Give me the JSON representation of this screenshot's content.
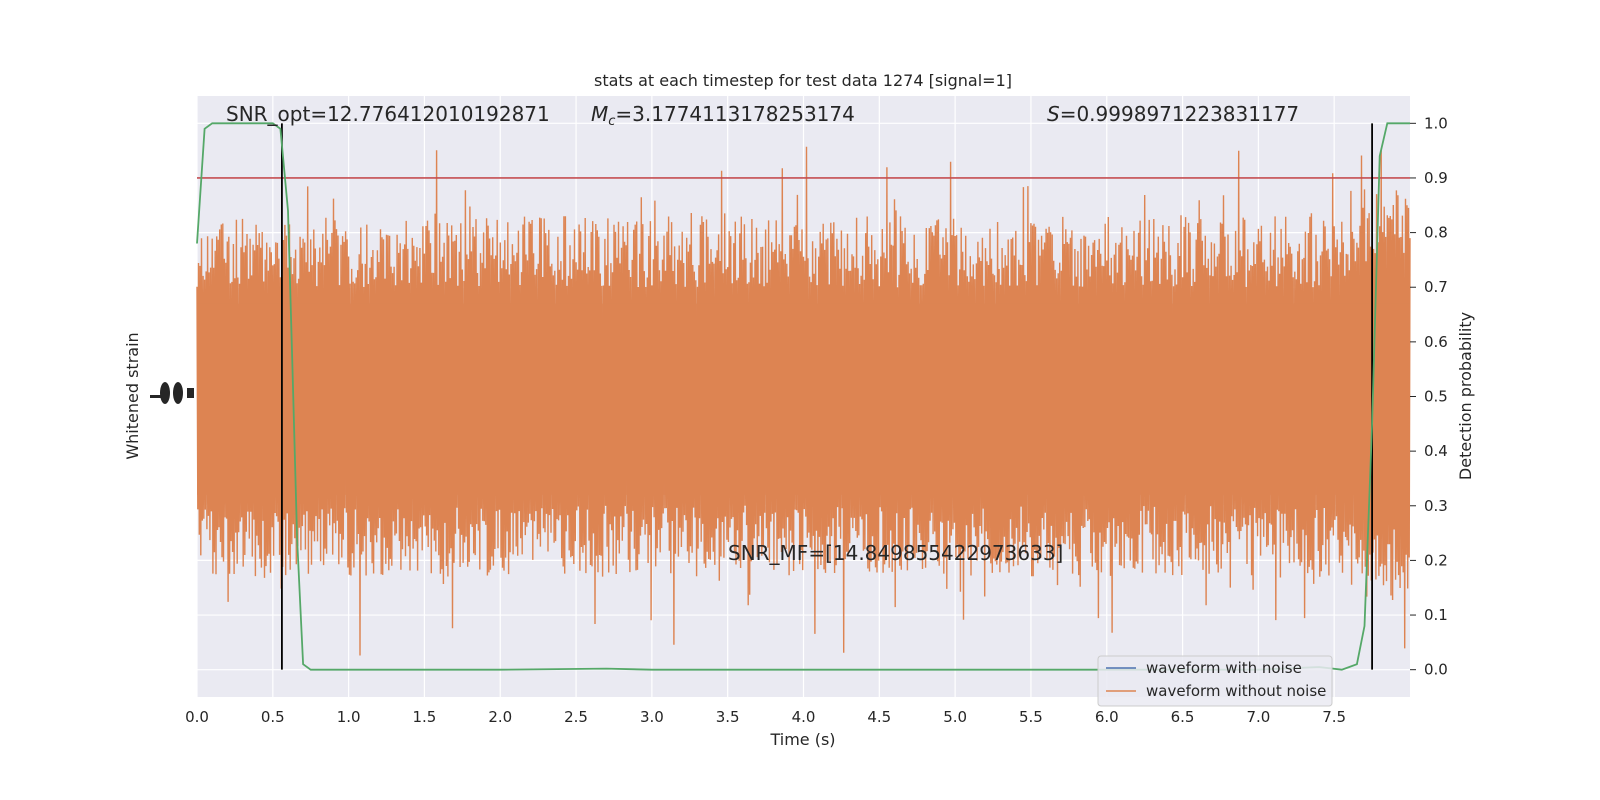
{
  "chart_data": {
    "type": "line",
    "title": "stats at each timestep for test data 1274 [signal=1]",
    "xlabel": "Time (s)",
    "ylabel_left": "Whitened strain",
    "ylabel_right": "Detection probability",
    "xlim": [
      0,
      8
    ],
    "ylim_right": [
      -0.05,
      1.05
    ],
    "x_ticks": [
      "0.0",
      "0.5",
      "1.0",
      "1.5",
      "2.0",
      "2.5",
      "3.0",
      "3.5",
      "4.0",
      "4.5",
      "5.0",
      "5.5",
      "6.0",
      "6.5",
      "7.0",
      "7.5"
    ],
    "x_tick_values": [
      0,
      0.5,
      1,
      1.5,
      2,
      2.5,
      3,
      3.5,
      4,
      4.5,
      5,
      5.5,
      6,
      6.5,
      7,
      7.5
    ],
    "y_right_ticks": [
      "0.0",
      "0.1",
      "0.2",
      "0.3",
      "0.4",
      "0.5",
      "0.6",
      "0.7",
      "0.8",
      "0.9",
      "1.0"
    ],
    "y_right_tick_values": [
      0,
      0.1,
      0.2,
      0.3,
      0.4,
      0.5,
      0.6,
      0.7,
      0.8,
      0.9,
      1.0
    ],
    "grid": true,
    "legend_position": "lower-right",
    "annotations": {
      "snr_opt": "SNR_opt=12.776412010192871",
      "mc_symbol": "M",
      "mc_subscript": "c",
      "mc_value": "=3.1774113178253174",
      "s_symbol": "S",
      "s_value": "=0.9998971223831177",
      "snr_mf": "SNR_MF=[14.849855422973633]"
    },
    "colors": {
      "waveform_with_noise": "#4c72b0",
      "waveform_without_noise": "#dd8452",
      "detection_probability": "#55a868",
      "threshold": "#c44e52",
      "markers": "#000000",
      "background": "#eaeaf2",
      "grid": "#ffffff"
    },
    "threshold": 0.9,
    "vertical_markers_x": [
      0.56,
      7.75
    ],
    "series": [
      {
        "name": "waveform with noise",
        "color": "#4c72b0"
      },
      {
        "name": "waveform without noise",
        "color": "#dd8452",
        "note_values": "whitened strain oscillation spanning roughly 0.1-0.95 on the right-axis scale"
      },
      {
        "color": "#55a868",
        "x": [
          0.0,
          0.05,
          0.1,
          0.2,
          0.3,
          0.4,
          0.5,
          0.55,
          0.6,
          0.63,
          0.66,
          0.7,
          0.75,
          0.8,
          0.9,
          1.0,
          2.0,
          2.7,
          3.0,
          3.5,
          4.0,
          5.0,
          6.0,
          7.0,
          7.4,
          7.55,
          7.6,
          7.65,
          7.7,
          7.75,
          7.8,
          7.85,
          7.9,
          7.95,
          8.0
        ],
        "values": [
          0.78,
          0.99,
          1.0,
          1.0,
          1.0,
          1.0,
          1.0,
          0.99,
          0.84,
          0.55,
          0.24,
          0.01,
          0.0,
          0.0,
          0.0,
          0.0,
          0.0,
          0.002,
          0.0,
          0.0,
          0.0,
          0.0,
          0.0,
          0.0,
          0.005,
          0.0,
          0.005,
          0.01,
          0.08,
          0.45,
          0.94,
          1.0,
          1.0,
          1.0,
          1.0
        ]
      }
    ]
  }
}
